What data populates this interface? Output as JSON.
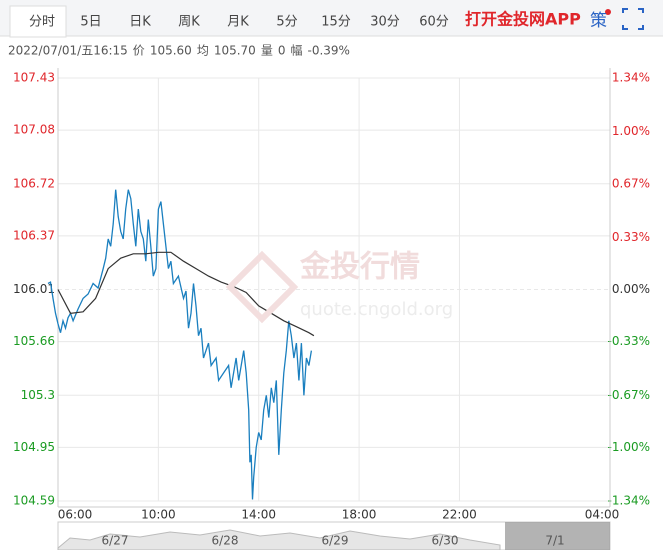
{
  "tabs": [
    "分时",
    "5日",
    "日K",
    "周K",
    "月K",
    "5分",
    "15分",
    "30分",
    "60分"
  ],
  "app_link": "打开金投网APP",
  "strategy": "策",
  "info": {
    "date": "2022/07/01/五16:15",
    "price_label": "价",
    "price": "105.60",
    "avg_label": "均",
    "avg": "105.70",
    "volume_label": "量",
    "volume": "0",
    "range_label": "幅",
    "range": "-0.39%"
  },
  "watermark": {
    "title": "金投行情",
    "url": "quote.cngold.org"
  },
  "navigator_dates": [
    "6/27",
    "6/28",
    "6/29",
    "6/30",
    "7/1"
  ],
  "chart_data": {
    "type": "line",
    "xlim": [
      6,
      28
    ],
    "xticks": [
      {
        "value": 6,
        "label": "06:00"
      },
      {
        "value": 10,
        "label": "10:00"
      },
      {
        "value": 14,
        "label": "14:00"
      },
      {
        "value": 18,
        "label": "18:00"
      },
      {
        "value": 22,
        "label": "22:00"
      },
      {
        "value": 28,
        "label": "04:00"
      }
    ],
    "ylim": [
      104.59,
      107.43
    ],
    "yticks": [
      107.43,
      107.08,
      106.72,
      106.37,
      106.01,
      105.66,
      105.3,
      {
        "value": 104.95,
        "label": "104.95"
      },
      104.59
    ],
    "y2lim": [
      -1.34,
      1.34
    ],
    "y2ticks": [
      {
        "value": 1.34,
        "label": "1.34%"
      },
      {
        "value": 1.0,
        "label": "1.00%"
      },
      {
        "value": 0.67,
        "label": "0.67%"
      },
      {
        "value": 0.33,
        "label": "0.33%"
      },
      {
        "value": 0,
        "label": "0.00%"
      },
      {
        "value": -0.33,
        "label": "-0.33%"
      },
      {
        "value": -0.67,
        "label": "-0.67%"
      },
      {
        "value": -1.0,
        "label": "-1.00%"
      },
      {
        "value": -1.34,
        "label": "-1.34%"
      }
    ],
    "grid": true,
    "series": [
      {
        "color": "#1a7fbf",
        "x": [
          5.6,
          5.7,
          5.8,
          5.9,
          6.0,
          6.1,
          6.2,
          6.3,
          6.4,
          6.5,
          6.6,
          6.8,
          7.0,
          7.2,
          7.4,
          7.6,
          7.8,
          7.9,
          8.0,
          8.1,
          8.2,
          8.3,
          8.4,
          8.5,
          8.6,
          8.7,
          8.8,
          8.9,
          9.0,
          9.1,
          9.2,
          9.3,
          9.4,
          9.5,
          9.6,
          9.7,
          9.8,
          9.9,
          10.0,
          10.1,
          10.2,
          10.3,
          10.4,
          10.5,
          10.6,
          10.8,
          11.0,
          11.1,
          11.2,
          11.3,
          11.4,
          11.5,
          11.6,
          11.7,
          11.8,
          12.0,
          12.1,
          12.3,
          12.4,
          12.6,
          12.8,
          12.9,
          13.1,
          13.2,
          13.4,
          13.5,
          13.6,
          13.65,
          13.7,
          13.75,
          13.8,
          13.9,
          14.0,
          14.1,
          14.2,
          14.3,
          14.4,
          14.5,
          14.6,
          14.7,
          14.8,
          14.9,
          15.0,
          15.1,
          15.2,
          15.3,
          15.4,
          15.5,
          15.6,
          15.7,
          15.8,
          15.9,
          16.0,
          16.1
        ],
        "values": [
          106.05,
          106.06,
          105.95,
          105.85,
          105.78,
          105.72,
          105.8,
          105.75,
          105.82,
          105.85,
          105.8,
          105.88,
          105.95,
          105.98,
          106.05,
          106.02,
          106.15,
          106.22,
          106.35,
          106.3,
          106.45,
          106.68,
          106.5,
          106.4,
          106.35,
          106.55,
          106.68,
          106.62,
          106.45,
          106.3,
          106.55,
          106.4,
          106.35,
          106.2,
          106.48,
          106.3,
          106.1,
          106.15,
          106.55,
          106.6,
          106.45,
          106.3,
          106.15,
          106.2,
          106.05,
          106.1,
          105.95,
          106.0,
          105.75,
          105.85,
          106.05,
          105.9,
          105.7,
          105.75,
          105.55,
          105.65,
          105.5,
          105.55,
          105.4,
          105.45,
          105.5,
          105.35,
          105.55,
          105.4,
          105.6,
          105.45,
          105.2,
          104.85,
          104.9,
          104.6,
          104.75,
          104.95,
          105.05,
          105.0,
          105.2,
          105.3,
          105.15,
          105.35,
          105.25,
          105.4,
          104.9,
          105.2,
          105.45,
          105.6,
          105.8,
          105.7,
          105.55,
          105.65,
          105.4,
          105.65,
          105.3,
          105.55,
          105.5,
          105.6
        ]
      },
      {
        "color": "#333333",
        "x": [
          6.0,
          6.5,
          7.0,
          7.5,
          8.0,
          8.5,
          9.0,
          9.5,
          10.0,
          10.5,
          11.0,
          11.5,
          12.0,
          12.5,
          13.0,
          13.5,
          14.0,
          14.5,
          15.0,
          15.5,
          16.0,
          16.2
        ],
        "values": [
          106.01,
          105.85,
          105.86,
          105.95,
          106.15,
          106.22,
          106.25,
          106.25,
          106.26,
          106.26,
          106.2,
          106.15,
          106.1,
          106.06,
          106.03,
          105.99,
          105.9,
          105.85,
          105.8,
          105.76,
          105.72,
          105.7
        ]
      }
    ]
  }
}
